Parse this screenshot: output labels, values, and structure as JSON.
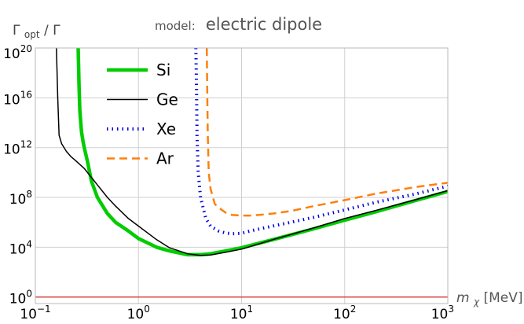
{
  "chart_data": {
    "type": "line",
    "title_prefix": "model:",
    "title": "electric dipole",
    "ylabel": {
      "base": "Γ",
      "sub": "opt",
      "suffix": " / Γ"
    },
    "xlabel": {
      "base": "m",
      "sub": "χ",
      "suffix": " [MeV]"
    },
    "x_scale": "log",
    "y_scale": "log",
    "xlim": [
      0.1,
      1000
    ],
    "ylim": [
      0.3,
      1e+20
    ],
    "x_ticks": [
      {
        "value": 0.1,
        "base": "10",
        "exp": "−1"
      },
      {
        "value": 1,
        "base": "10",
        "exp": "0"
      },
      {
        "value": 10,
        "base": "10",
        "exp": "1"
      },
      {
        "value": 100,
        "base": "10",
        "exp": "2"
      },
      {
        "value": 1000,
        "base": "10",
        "exp": "3"
      }
    ],
    "y_ticks": [
      {
        "value": 1,
        "base": "10",
        "exp": "0"
      },
      {
        "value": 10000,
        "base": "10",
        "exp": "4"
      },
      {
        "value": 100000000,
        "base": "10",
        "exp": "8"
      },
      {
        "value": 1000000000000.0,
        "base": "10",
        "exp": "12"
      },
      {
        "value": 1e+16,
        "base": "10",
        "exp": "16"
      },
      {
        "value": 1e+20,
        "base": "10",
        "exp": "20"
      }
    ],
    "grid": true,
    "legend_position": "upper-left",
    "reference_line": {
      "y": 1,
      "color": "#d62728"
    },
    "series": [
      {
        "name": "Si",
        "color": "#00cc00",
        "style": "solid-thick",
        "x": [
          0.26,
          0.265,
          0.27,
          0.28,
          0.29,
          0.3,
          0.32,
          0.35,
          0.4,
          0.5,
          0.6,
          0.8,
          1,
          1.5,
          2,
          3,
          4,
          5,
          7,
          10,
          20,
          50,
          100,
          200,
          500,
          1000
        ],
        "y": [
          1e+20,
          1e+17,
          1000000000000000.0,
          20000000000000.0,
          3000000000000.0,
          800000000000.0,
          80000000000.0,
          2000000000.0,
          100000000.0,
          5000000.0,
          1000000.0,
          200000.0,
          50000.0,
          10000.0,
          5000,
          2500,
          2500,
          3000,
          5000,
          9000,
          40000.0,
          300000.0,
          1500000.0,
          7000000.0,
          60000000.0,
          300000000.0
        ]
      },
      {
        "name": "Ge",
        "color": "#000000",
        "style": "solid-thin",
        "x": [
          0.16,
          0.165,
          0.17,
          0.18,
          0.2,
          0.22,
          0.25,
          0.3,
          0.4,
          0.5,
          0.6,
          0.8,
          1,
          1.5,
          2,
          3,
          4,
          5,
          7,
          10,
          20,
          50,
          100,
          200,
          500,
          1000
        ],
        "y": [
          1e+20,
          1e+16,
          10000000000000.0,
          2000000000000.0,
          500000000000.0,
          200000000000.0,
          80000000000.0,
          20000000000.0,
          1000000000.0,
          100000000.0,
          20000000.0,
          2000000.0,
          500000.0,
          40000.0,
          9000,
          3000,
          2200,
          2400,
          4000,
          7000,
          40000.0,
          350000.0,
          2000000.0,
          9000000.0,
          70000000.0,
          350000000.0
        ]
      },
      {
        "name": "Xe",
        "color": "#0000dd",
        "style": "dotted",
        "x": [
          3.6,
          3.65,
          3.7,
          3.8,
          4,
          4.5,
          5,
          6,
          7,
          8,
          10,
          12,
          15,
          20,
          30,
          50,
          100,
          200,
          500,
          1000
        ],
        "y": [
          1e+20,
          1e+17,
          10000000000000.0,
          10000000000.0,
          100000000.0,
          2000000.0,
          500000.0,
          200000.0,
          140000.0,
          120000.0,
          130000.0,
          200000.0,
          300000.0,
          500000.0,
          1000000.0,
          2500000.0,
          10000000.0,
          40000000.0,
          200000000.0,
          800000000.0
        ]
      },
      {
        "name": "Ar",
        "color": "#ff7f0e",
        "style": "dashed",
        "x": [
          4.6,
          4.65,
          4.7,
          4.8,
          5,
          5.5,
          6,
          7,
          8,
          10,
          12,
          15,
          20,
          30,
          50,
          100,
          200,
          500,
          1000
        ],
        "y": [
          1e+20,
          1e+16,
          10000000000000.0,
          10000000000.0,
          500000000.0,
          30000000.0,
          15000000.0,
          6000000.0,
          4000000.0,
          3500000.0,
          3500000.0,
          4000000.0,
          5000000.0,
          8000000.0,
          20000000.0,
          60000000.0,
          200000000.0,
          700000000.0,
          1500000000.0
        ]
      }
    ]
  }
}
